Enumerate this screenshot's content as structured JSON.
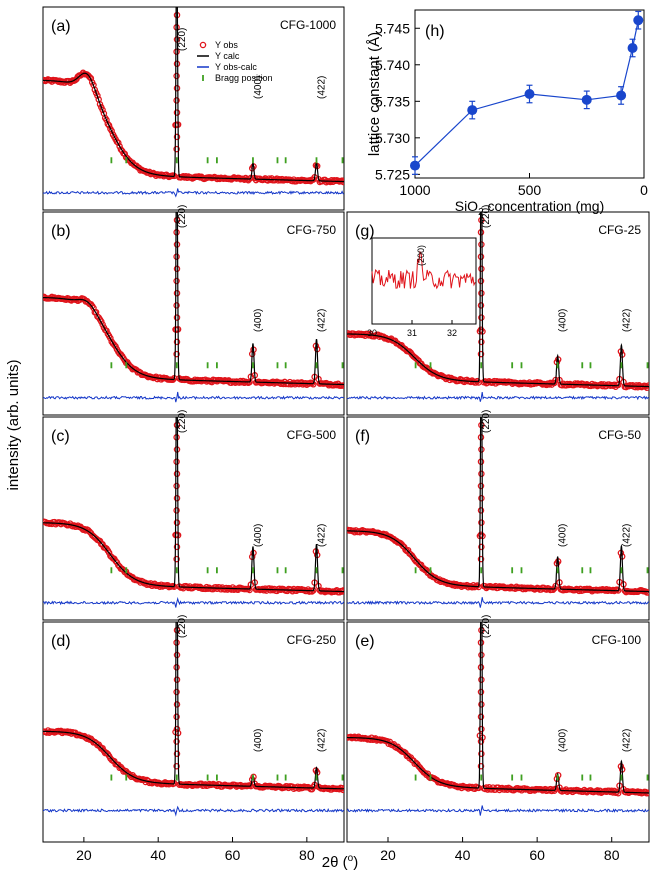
{
  "figure": {
    "ylabel": "intensity (arb. units)",
    "xlabel": "2θ (",
    "xlabel_unit": "o",
    "xlabel_close": ")",
    "x_ticks": [
      "20",
      "40",
      "60",
      "80"
    ]
  },
  "colors": {
    "obs": "#e0141b",
    "calc": "#000000",
    "diff": "#1437c8",
    "bragg": "#3fa021",
    "lattice": "#1946cc"
  },
  "legend": {
    "items": [
      {
        "label": "Y obs",
        "marker": "circle"
      },
      {
        "label": "Y calc",
        "marker": "line-black"
      },
      {
        "label": "Y obs-calc",
        "marker": "line-blue"
      },
      {
        "label": "Bragg position",
        "marker": "tick-green"
      }
    ]
  },
  "panels": [
    {
      "letter": "(a)",
      "sample": "CFG-1000"
    },
    {
      "letter": "(b)",
      "sample": "CFG-750"
    },
    {
      "letter": "(c)",
      "sample": "CFG-500"
    },
    {
      "letter": "(d)",
      "sample": "CFG-250"
    },
    {
      "letter": "(e)",
      "sample": "CFG-100"
    },
    {
      "letter": "(f)",
      "sample": "CFG-50"
    },
    {
      "letter": "(g)",
      "sample": "CFG-25"
    }
  ],
  "peak_labels": [
    "(220)",
    "(400)",
    "(422)"
  ],
  "inset": {
    "peak_label": "(200)",
    "x_ticks": [
      "30",
      "31",
      "32"
    ]
  },
  "chart_data": [
    {
      "type": "scatter",
      "panel": "(h)",
      "title": "",
      "xlabel": "SiO",
      "xlabel_sub": "2",
      "xlabel_rest": " concentration (mg)",
      "ylabel": "lattice constant (Å)",
      "x_reversed": true,
      "xlim": [
        1000,
        0
      ],
      "ylim": [
        5.7245,
        5.7475
      ],
      "x_ticks": [
        "1000",
        "500",
        "0"
      ],
      "y_ticks": [
        "5.725",
        "5.730",
        "5.735",
        "5.740",
        "5.745"
      ],
      "x": [
        1000,
        750,
        500,
        250,
        100,
        50,
        25
      ],
      "y": [
        5.7262,
        5.7338,
        5.736,
        5.7352,
        5.7358,
        5.7423,
        5.7461
      ],
      "yerr": [
        0.0012,
        0.0012,
        0.0012,
        0.0012,
        0.0012,
        0.0012,
        0.0012
      ]
    },
    {
      "type": "line",
      "description_of": "XRD patterns (a)-(g)",
      "xlim": [
        9,
        90
      ],
      "bragg_positions": [
        27.4,
        31.4,
        45.0,
        53.3,
        55.8,
        65.5,
        72.1,
        74.3,
        82.6,
        89.6
      ],
      "peaks_2theta": [
        45.0,
        65.5,
        82.6
      ]
    }
  ]
}
